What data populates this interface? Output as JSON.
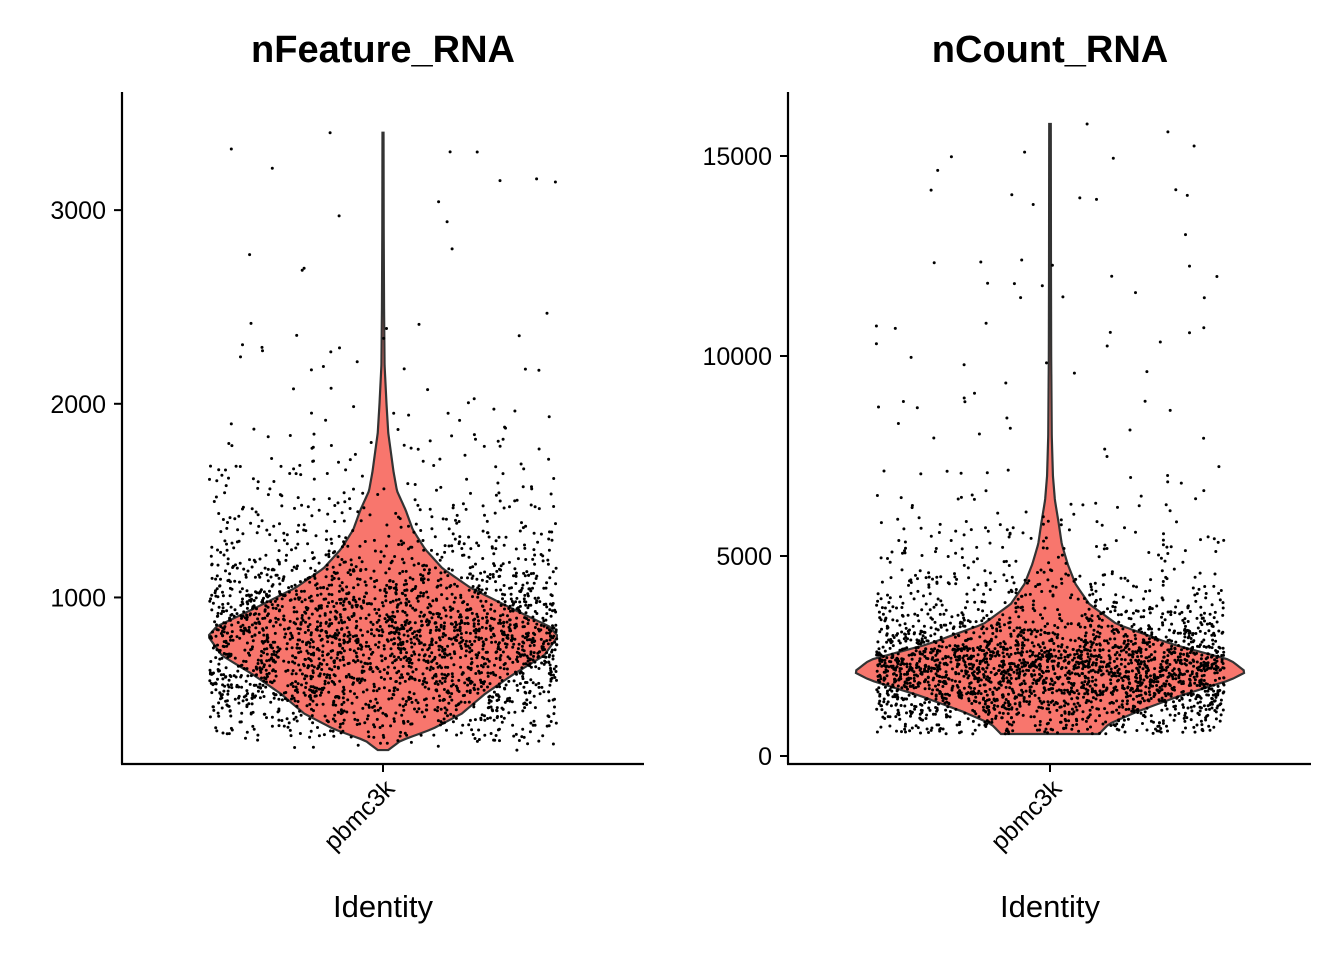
{
  "chart_data": [
    {
      "type": "violin",
      "title": "nFeature_RNA",
      "xlabel": "Identity",
      "ylabel": "",
      "categories": [
        "pbmc3k"
      ],
      "ylim": [
        140,
        3610
      ],
      "yticks": [
        1000,
        2000,
        3000
      ],
      "fill_color": "#f8766d",
      "outline_color": "#333333",
      "point_color": "#000000",
      "n_points": 2700,
      "grid": false,
      "legend": "none",
      "distribution": {
        "min": 212,
        "max": 3400,
        "mode": 820,
        "density": [
          [
            212,
            0.03
          ],
          [
            260,
            0.1
          ],
          [
            320,
            0.28
          ],
          [
            400,
            0.45
          ],
          [
            500,
            0.58
          ],
          [
            600,
            0.74
          ],
          [
            700,
            0.92
          ],
          [
            800,
            1.0
          ],
          [
            850,
            0.95
          ],
          [
            950,
            0.72
          ],
          [
            1050,
            0.5
          ],
          [
            1150,
            0.34
          ],
          [
            1250,
            0.24
          ],
          [
            1350,
            0.17
          ],
          [
            1450,
            0.13
          ],
          [
            1550,
            0.08
          ],
          [
            1650,
            0.06
          ],
          [
            1750,
            0.045
          ],
          [
            1850,
            0.03
          ],
          [
            2000,
            0.02
          ],
          [
            2200,
            0.009
          ],
          [
            2500,
            0.006
          ],
          [
            2900,
            0.004
          ],
          [
            3400,
            0.003
          ]
        ]
      },
      "outliers": [
        212,
        232,
        2410,
        2690,
        2700,
        2800,
        3300,
        3400
      ]
    },
    {
      "type": "violin",
      "title": "nCount_RNA",
      "xlabel": "Identity",
      "ylabel": "",
      "categories": [
        "pbmc3k"
      ],
      "ylim": [
        -200,
        16600
      ],
      "yticks": [
        0,
        5000,
        10000,
        15000
      ],
      "fill_color": "#f8766d",
      "outline_color": "#333333",
      "point_color": "#000000",
      "n_points": 2700,
      "grid": false,
      "legend": "none",
      "distribution": {
        "min": 550,
        "max": 15800,
        "mode": 2100,
        "density": [
          [
            550,
            0.25
          ],
          [
            800,
            0.3
          ],
          [
            1100,
            0.44
          ],
          [
            1500,
            0.66
          ],
          [
            1900,
            0.92
          ],
          [
            2100,
            1.0
          ],
          [
            2400,
            0.92
          ],
          [
            2800,
            0.62
          ],
          [
            3300,
            0.34
          ],
          [
            3800,
            0.2
          ],
          [
            4300,
            0.13
          ],
          [
            4800,
            0.09
          ],
          [
            5300,
            0.06
          ],
          [
            5800,
            0.045
          ],
          [
            6400,
            0.025
          ],
          [
            7000,
            0.015
          ],
          [
            8000,
            0.009
          ],
          [
            10000,
            0.006
          ],
          [
            12000,
            0.005
          ],
          [
            15800,
            0.004
          ]
        ]
      },
      "outliers": [
        7950,
        8050,
        8450,
        8950,
        10250,
        10350,
        10750,
        15250,
        15800
      ]
    }
  ]
}
